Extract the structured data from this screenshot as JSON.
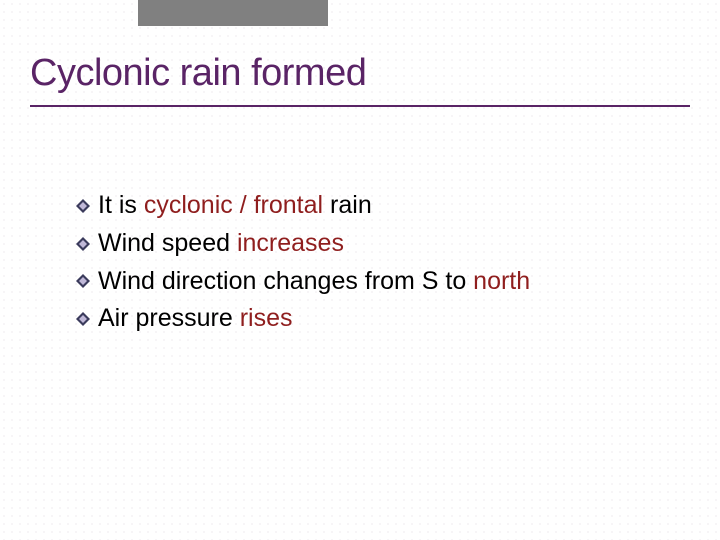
{
  "title": {
    "text": "Cyclonic rain formed",
    "color": "#5a2466",
    "underline_color": "#5a2466",
    "fontsize": 38
  },
  "bullets": [
    {
      "parts": [
        {
          "text": "It is ",
          "color": "#000000"
        },
        {
          "text": "cyclonic / frontal",
          "color": "#8f1e1e"
        },
        {
          "text": " rain",
          "color": "#000000"
        }
      ]
    },
    {
      "parts": [
        {
          "text": "Wind speed ",
          "color": "#000000"
        },
        {
          "text": "increases",
          "color": "#8f1e1e"
        }
      ]
    },
    {
      "parts": [
        {
          "text": "Wind direction changes from S to ",
          "color": "#000000"
        },
        {
          "text": "north",
          "color": "#8f1e1e"
        }
      ]
    },
    {
      "parts": [
        {
          "text": "Air pressure ",
          "color": "#000000"
        },
        {
          "text": "rises",
          "color": "#8f1e1e"
        }
      ]
    }
  ],
  "bullet_icon": {
    "dark": "#3b3b5c",
    "light": "#c0b8d8",
    "size": 14
  },
  "body_fontsize": 25,
  "background": "#ffffff",
  "top_bar_color": "#808080"
}
